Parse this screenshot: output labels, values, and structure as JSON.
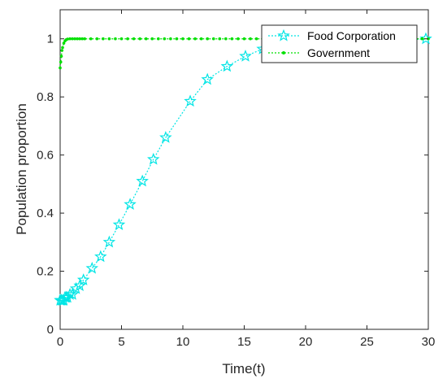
{
  "chart_data": {
    "type": "line",
    "xlabel": "Time(t)",
    "ylabel": "Population proportion",
    "xlim": [
      0,
      30
    ],
    "ylim": [
      0,
      1.1
    ],
    "xticks": [
      0,
      5,
      10,
      15,
      20,
      25,
      30
    ],
    "yticks": [
      0,
      0.2,
      0.4,
      0.6,
      0.8,
      1
    ],
    "grid": false,
    "legend_position": "top-right",
    "series": [
      {
        "name": "Food Corporation",
        "color": "#00e5e5",
        "marker": "star",
        "line": "dotted",
        "x": [
          0,
          0.1,
          0.2,
          0.3,
          0.4,
          0.5,
          0.6,
          0.8,
          1.0,
          1.3,
          1.6,
          1.9,
          2.6,
          3.3,
          4.0,
          4.8,
          5.7,
          6.7,
          7.6,
          8.6,
          10.6,
          12.0,
          13.6,
          15.1,
          16.5,
          29.8
        ],
        "y": [
          0.1,
          0.1,
          0.1,
          0.1,
          0.11,
          0.11,
          0.11,
          0.12,
          0.12,
          0.14,
          0.15,
          0.17,
          0.21,
          0.25,
          0.3,
          0.36,
          0.43,
          0.51,
          0.585,
          0.66,
          0.785,
          0.86,
          0.905,
          0.94,
          0.965,
          1.0
        ]
      },
      {
        "name": "Government",
        "color": "#00e000",
        "marker": "dot",
        "line": "dotted",
        "x": [
          0,
          0.05,
          0.1,
          0.15,
          0.2,
          0.3,
          0.4,
          0.5,
          0.6,
          0.8,
          1.0,
          1.2,
          1.4,
          1.6,
          1.8,
          2.0,
          2.5,
          3.0,
          3.5,
          4.0,
          4.5,
          5.0,
          5.5,
          6.0,
          6.5,
          7.0,
          7.5,
          8.0,
          8.5,
          9.0,
          9.5,
          10.0,
          10.5,
          11.0,
          11.5,
          12.0,
          12.5,
          13.0,
          13.5,
          14.0,
          14.5,
          15.0,
          15.5,
          16.0,
          16.5,
          17.0,
          17.5,
          18.0,
          18.5,
          19.0,
          19.5,
          20.0,
          20.5,
          21.0,
          21.5,
          22.0,
          22.5,
          23.0,
          23.5,
          24.0,
          24.5,
          25.0,
          25.5,
          26.0,
          26.5,
          27.0,
          27.5,
          28.0,
          28.5,
          29.0,
          29.5,
          30.0
        ],
        "y": [
          0.9,
          0.92,
          0.94,
          0.96,
          0.97,
          0.985,
          0.993,
          0.997,
          0.999,
          1.0,
          1.0,
          1.0,
          1.0,
          1.0,
          1.0,
          1.0,
          1.0,
          1.0,
          1.0,
          1.0,
          1.0,
          1.0,
          1.0,
          1.0,
          1.0,
          1.0,
          1.0,
          1.0,
          1.0,
          1.0,
          1.0,
          1.0,
          1.0,
          1.0,
          1.0,
          1.0,
          1.0,
          1.0,
          1.0,
          1.0,
          1.0,
          1.0,
          1.0,
          1.0,
          1.0,
          1.0,
          1.0,
          1.0,
          1.0,
          1.0,
          1.0,
          1.0,
          1.0,
          1.0,
          1.0,
          1.0,
          1.0,
          1.0,
          1.0,
          1.0,
          1.0,
          1.0,
          1.0,
          1.0,
          1.0,
          1.0,
          1.0,
          1.0,
          1.0,
          1.0,
          1.0,
          1.0
        ]
      }
    ]
  }
}
